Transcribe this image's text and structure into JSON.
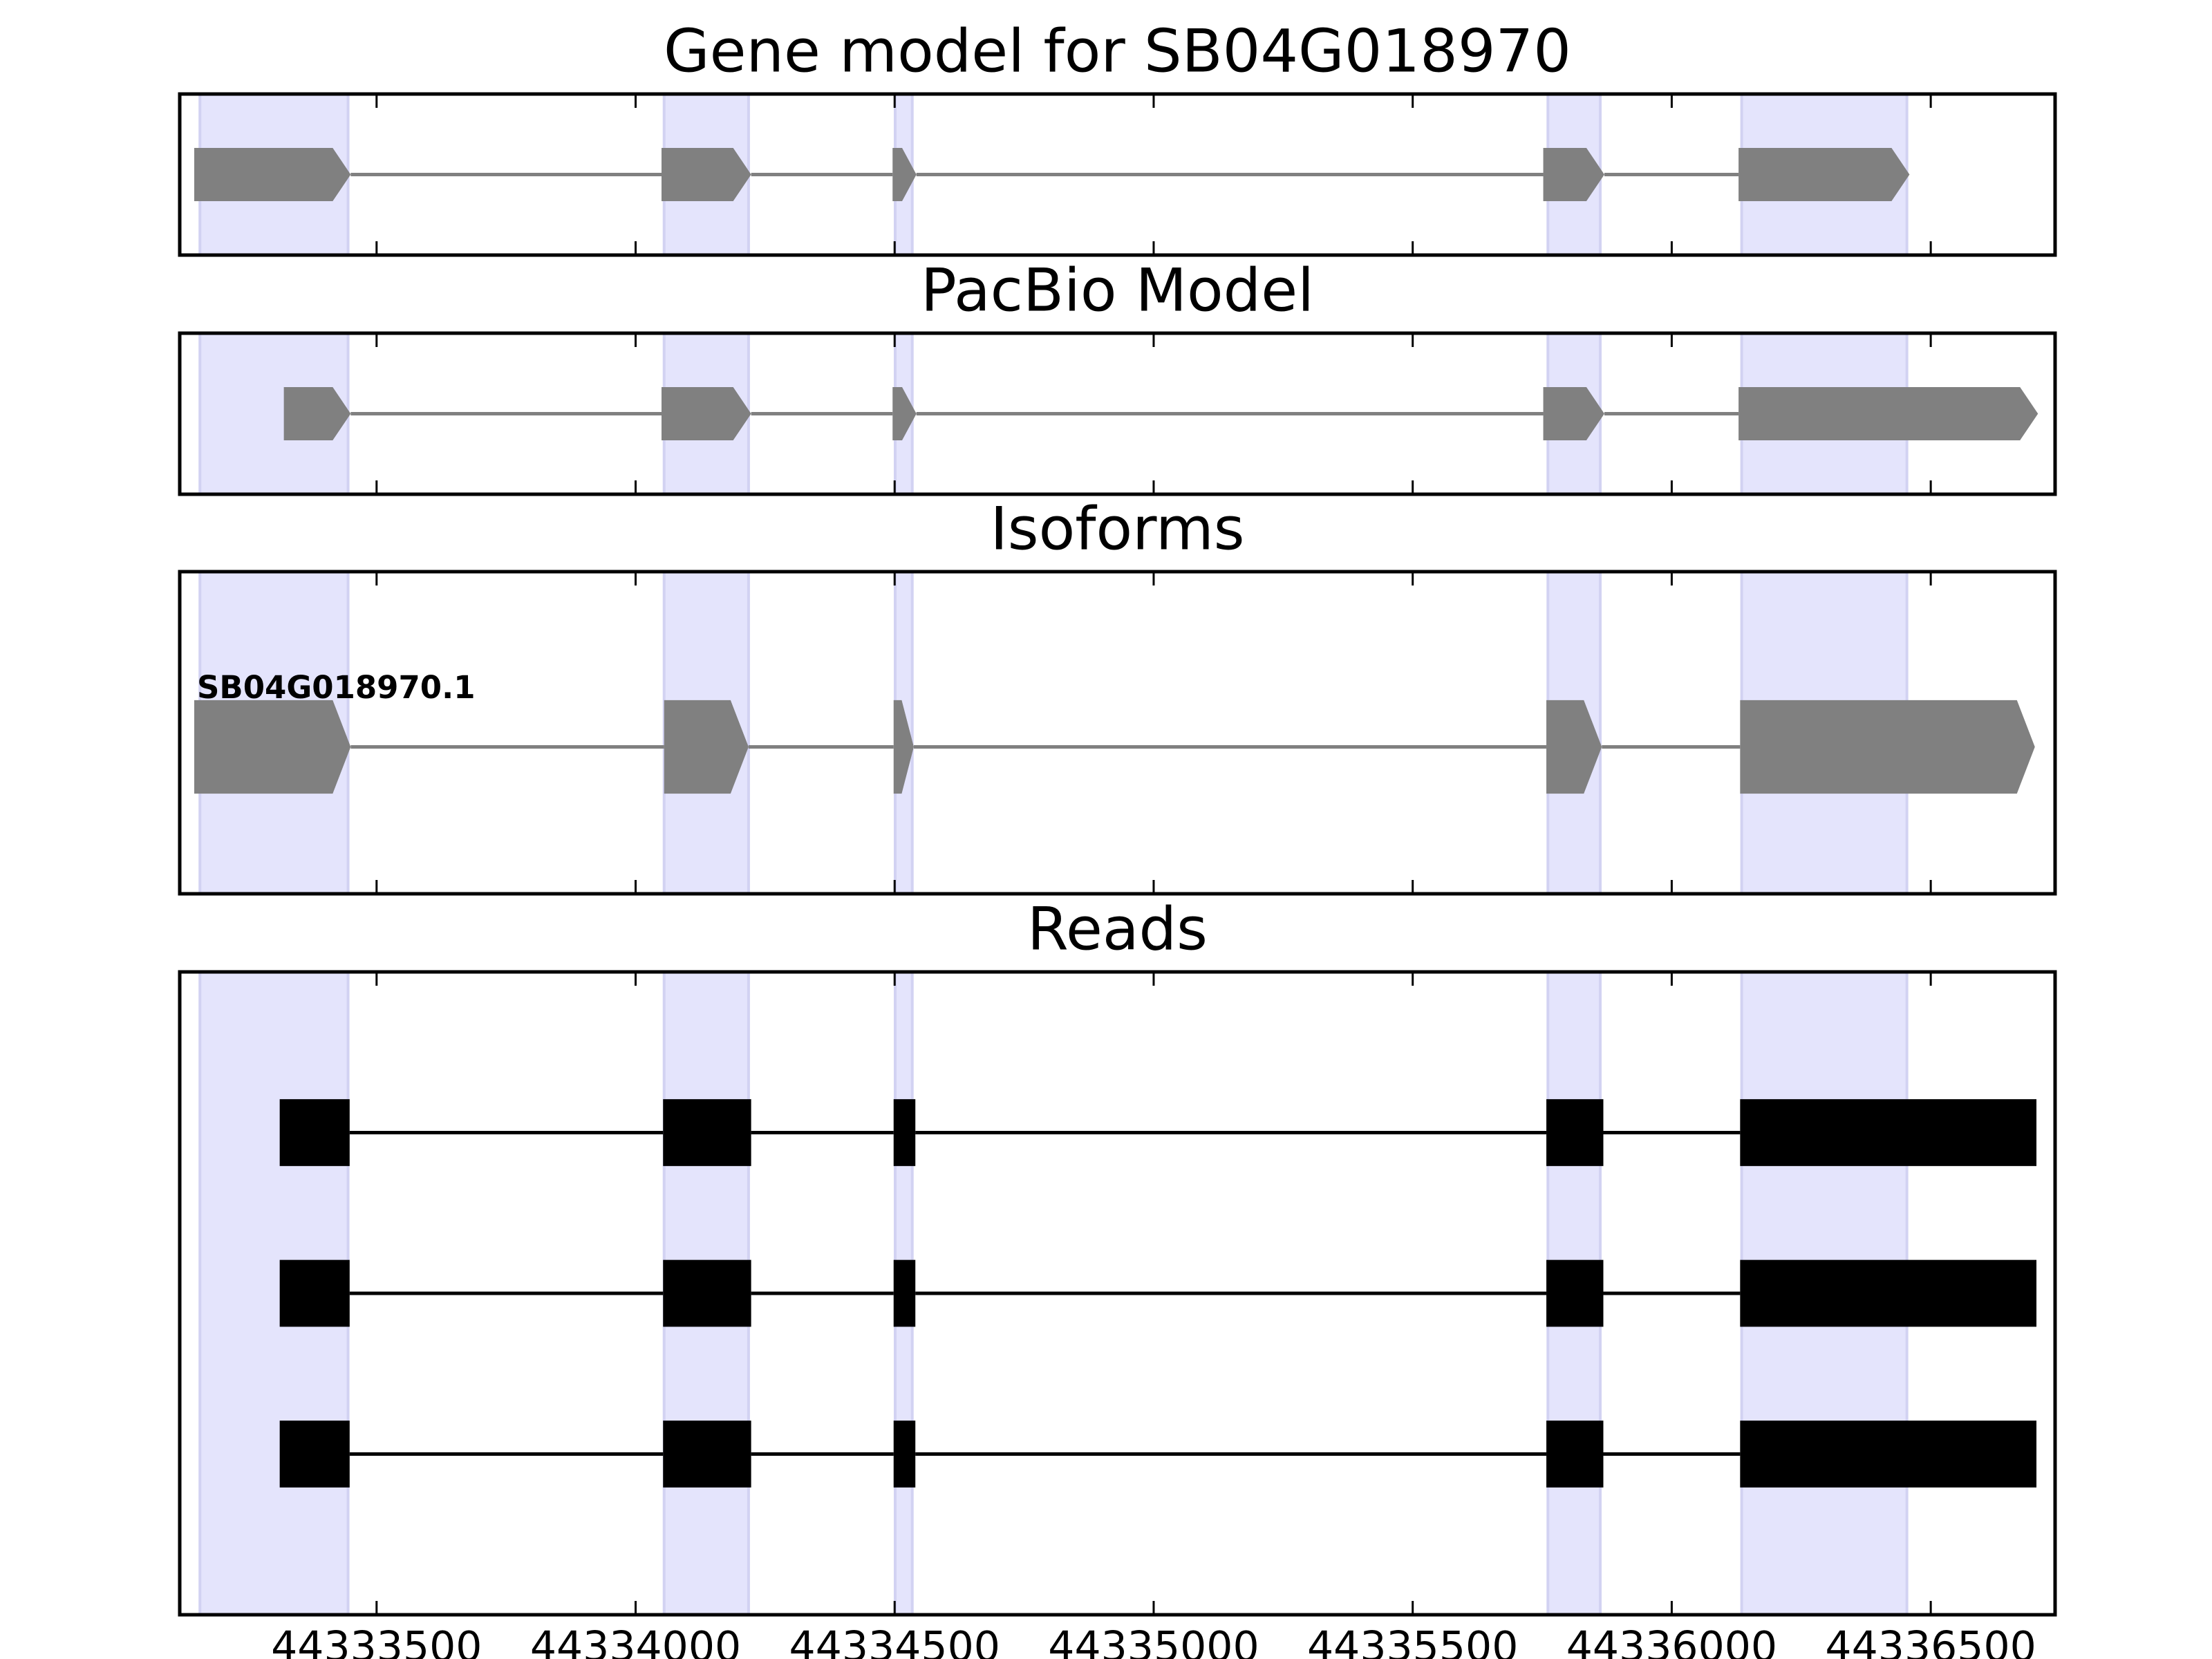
{
  "chart_data": [
    {
      "type": "gene-model",
      "title": "Gene model for SB04G018970",
      "color": "#808080",
      "region_color": "#e4e4fc",
      "xlim": [
        44333120,
        44336740
      ],
      "xticks": [
        44333500,
        44334000,
        44334500,
        44335000,
        44335500,
        44336000,
        44336500
      ],
      "regions": [
        [
          44333159,
          44333445
        ],
        [
          44334055,
          44334218
        ],
        [
          44334501,
          44334534
        ],
        [
          44335761,
          44335862
        ],
        [
          44336135,
          44336454
        ]
      ],
      "exons": [
        [
          44333148,
          44333450
        ],
        [
          44334050,
          44334223
        ],
        [
          44334496,
          44334542
        ],
        [
          44335752,
          44335870
        ],
        [
          44336129,
          44336459
        ]
      ]
    },
    {
      "type": "gene-model",
      "title": "PacBio Model",
      "color": "#808080",
      "region_color": "#e4e4fc",
      "xlim": [
        44333120,
        44336740
      ],
      "xticks": [
        44333500,
        44334000,
        44334500,
        44335000,
        44335500,
        44336000,
        44336500
      ],
      "regions": [
        [
          44333159,
          44333445
        ],
        [
          44334055,
          44334218
        ],
        [
          44334501,
          44334534
        ],
        [
          44335761,
          44335862
        ],
        [
          44336135,
          44336454
        ]
      ],
      "exons": [
        [
          44333321,
          44333450
        ],
        [
          44334050,
          44334223
        ],
        [
          44334496,
          44334542
        ],
        [
          44335752,
          44335870
        ],
        [
          44336129,
          44336707
        ]
      ]
    },
    {
      "type": "isoforms",
      "title": "Isoforms",
      "color": "#808080",
      "region_color": "#e4e4fc",
      "xlim": [
        44333120,
        44336740
      ],
      "xticks": [
        44333500,
        44334000,
        44334500,
        44335000,
        44335500,
        44336000,
        44336500
      ],
      "regions": [
        [
          44333159,
          44333445
        ],
        [
          44334055,
          44334218
        ],
        [
          44334501,
          44334534
        ],
        [
          44335761,
          44335862
        ],
        [
          44336135,
          44336454
        ]
      ],
      "isoforms": [
        {
          "name": "SB04G018970.1",
          "exons": [
            [
              44333148,
              44333450
            ],
            [
              44334055,
              44334218
            ],
            [
              44334498,
              44334537
            ],
            [
              44335758,
              44335865
            ],
            [
              44336132,
              44336701
            ]
          ]
        }
      ]
    },
    {
      "type": "reads",
      "title": "Reads",
      "color": "#000000",
      "region_color": "#e4e4fc",
      "show_xtick_labels": true,
      "xlim": [
        44333120,
        44336740
      ],
      "xticks": [
        44333500,
        44334000,
        44334500,
        44335000,
        44335500,
        44336000,
        44336500
      ],
      "regions": [
        [
          44333159,
          44333445
        ],
        [
          44334055,
          44334218
        ],
        [
          44334501,
          44334534
        ],
        [
          44335761,
          44335862
        ],
        [
          44336135,
          44336454
        ]
      ],
      "reads": [
        [
          [
            44333313,
            44333448
          ],
          [
            44334053,
            44334223
          ],
          [
            44334498,
            44334540
          ],
          [
            44335758,
            44335868
          ],
          [
            44336132,
            44336704
          ]
        ],
        [
          [
            44333313,
            44333448
          ],
          [
            44334053,
            44334223
          ],
          [
            44334498,
            44334540
          ],
          [
            44335758,
            44335868
          ],
          [
            44336132,
            44336704
          ]
        ],
        [
          [
            44333313,
            44333448
          ],
          [
            44334053,
            44334223
          ],
          [
            44334498,
            44334540
          ],
          [
            44335758,
            44335868
          ],
          [
            44336132,
            44336704
          ]
        ]
      ]
    }
  ]
}
